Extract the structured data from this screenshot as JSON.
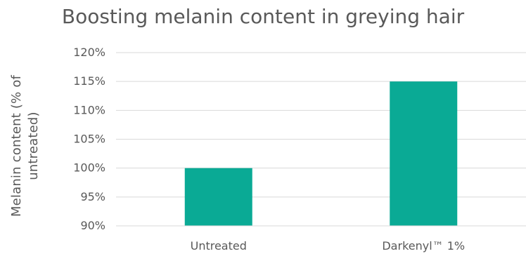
{
  "chart_data": {
    "type": "bar",
    "title": "Boosting melanin content in greying hair",
    "ylabel": "Melanin content (% of untreated)",
    "ylabel_lines": [
      "Melanin content (% of",
      "untreated)"
    ],
    "xlabel": "",
    "categories": [
      "Untreated",
      "Darkenyl™ 1%"
    ],
    "values": [
      100,
      115
    ],
    "ylim": [
      90,
      120
    ],
    "yticks": [
      90,
      95,
      100,
      105,
      110,
      115,
      120
    ],
    "ytick_labels": [
      "90%",
      "95%",
      "100%",
      "105%",
      "110%",
      "115%",
      "120%"
    ],
    "grid": "horizontal",
    "legend": "none",
    "colors": {
      "bar": "#0aaa95",
      "grid": "#d9d9d9",
      "text": "#595959"
    }
  }
}
